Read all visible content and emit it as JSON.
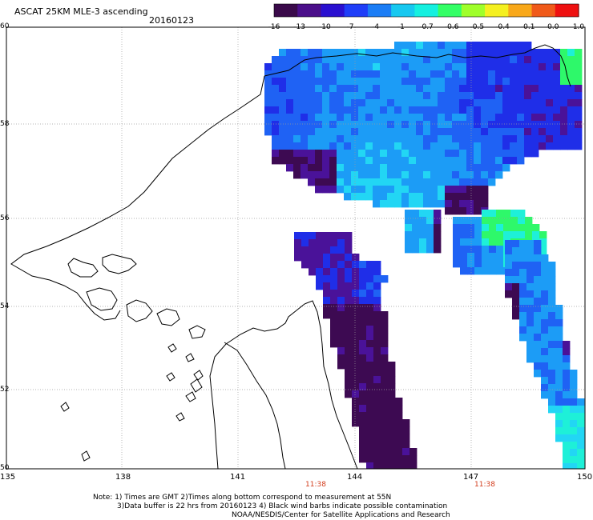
{
  "title": "ASCAT 25KM MLE-3 ascending",
  "date": "20160123",
  "colorbar": {
    "tick_labels": [
      "-16",
      "-13",
      "-10",
      "-7",
      "-4",
      "-1",
      "-0.7",
      "-0.6",
      "-0.5",
      "-0.4",
      "-0.1",
      "0.0",
      "1.0"
    ],
    "colors": [
      "#3a0a4a",
      "#4b0f8a",
      "#2a10d0",
      "#1f3ef8",
      "#1b7df5",
      "#17c8f0",
      "#15f0e0",
      "#33ff66",
      "#9fff2a",
      "#f4f020",
      "#f8a81a",
      "#f05a1a",
      "#ee1010"
    ]
  },
  "axes": {
    "lat_labels": [
      "60",
      "58",
      "56",
      "54",
      "52",
      "50"
    ],
    "lon_labels": [
      "135",
      "138",
      "141",
      "144",
      "147",
      "150"
    ],
    "time_labels": [
      "11:38",
      "11:38"
    ]
  },
  "notes": [
    "Note: 1) Times are GMT 2)Times along bottom correspond to measurement at 55N",
    "3)Data buffer is 22 hrs from 20160123 4) Black wind barbs indicate possible contamination",
    "NOAA/NESDIS/Center for Satellite Applications and Research"
  ],
  "colors": {
    "deep_purple": "#3d0a52",
    "indigo": "#4a1299",
    "blue": "#1f2ee8",
    "mid_blue": "#1f62f4",
    "light_blue": "#1c9cf6",
    "cyan": "#22d6f4",
    "aqua": "#1ef0d8",
    "green": "#2ef86a",
    "coast": "#000000",
    "grid": "#9a9a9a"
  }
}
